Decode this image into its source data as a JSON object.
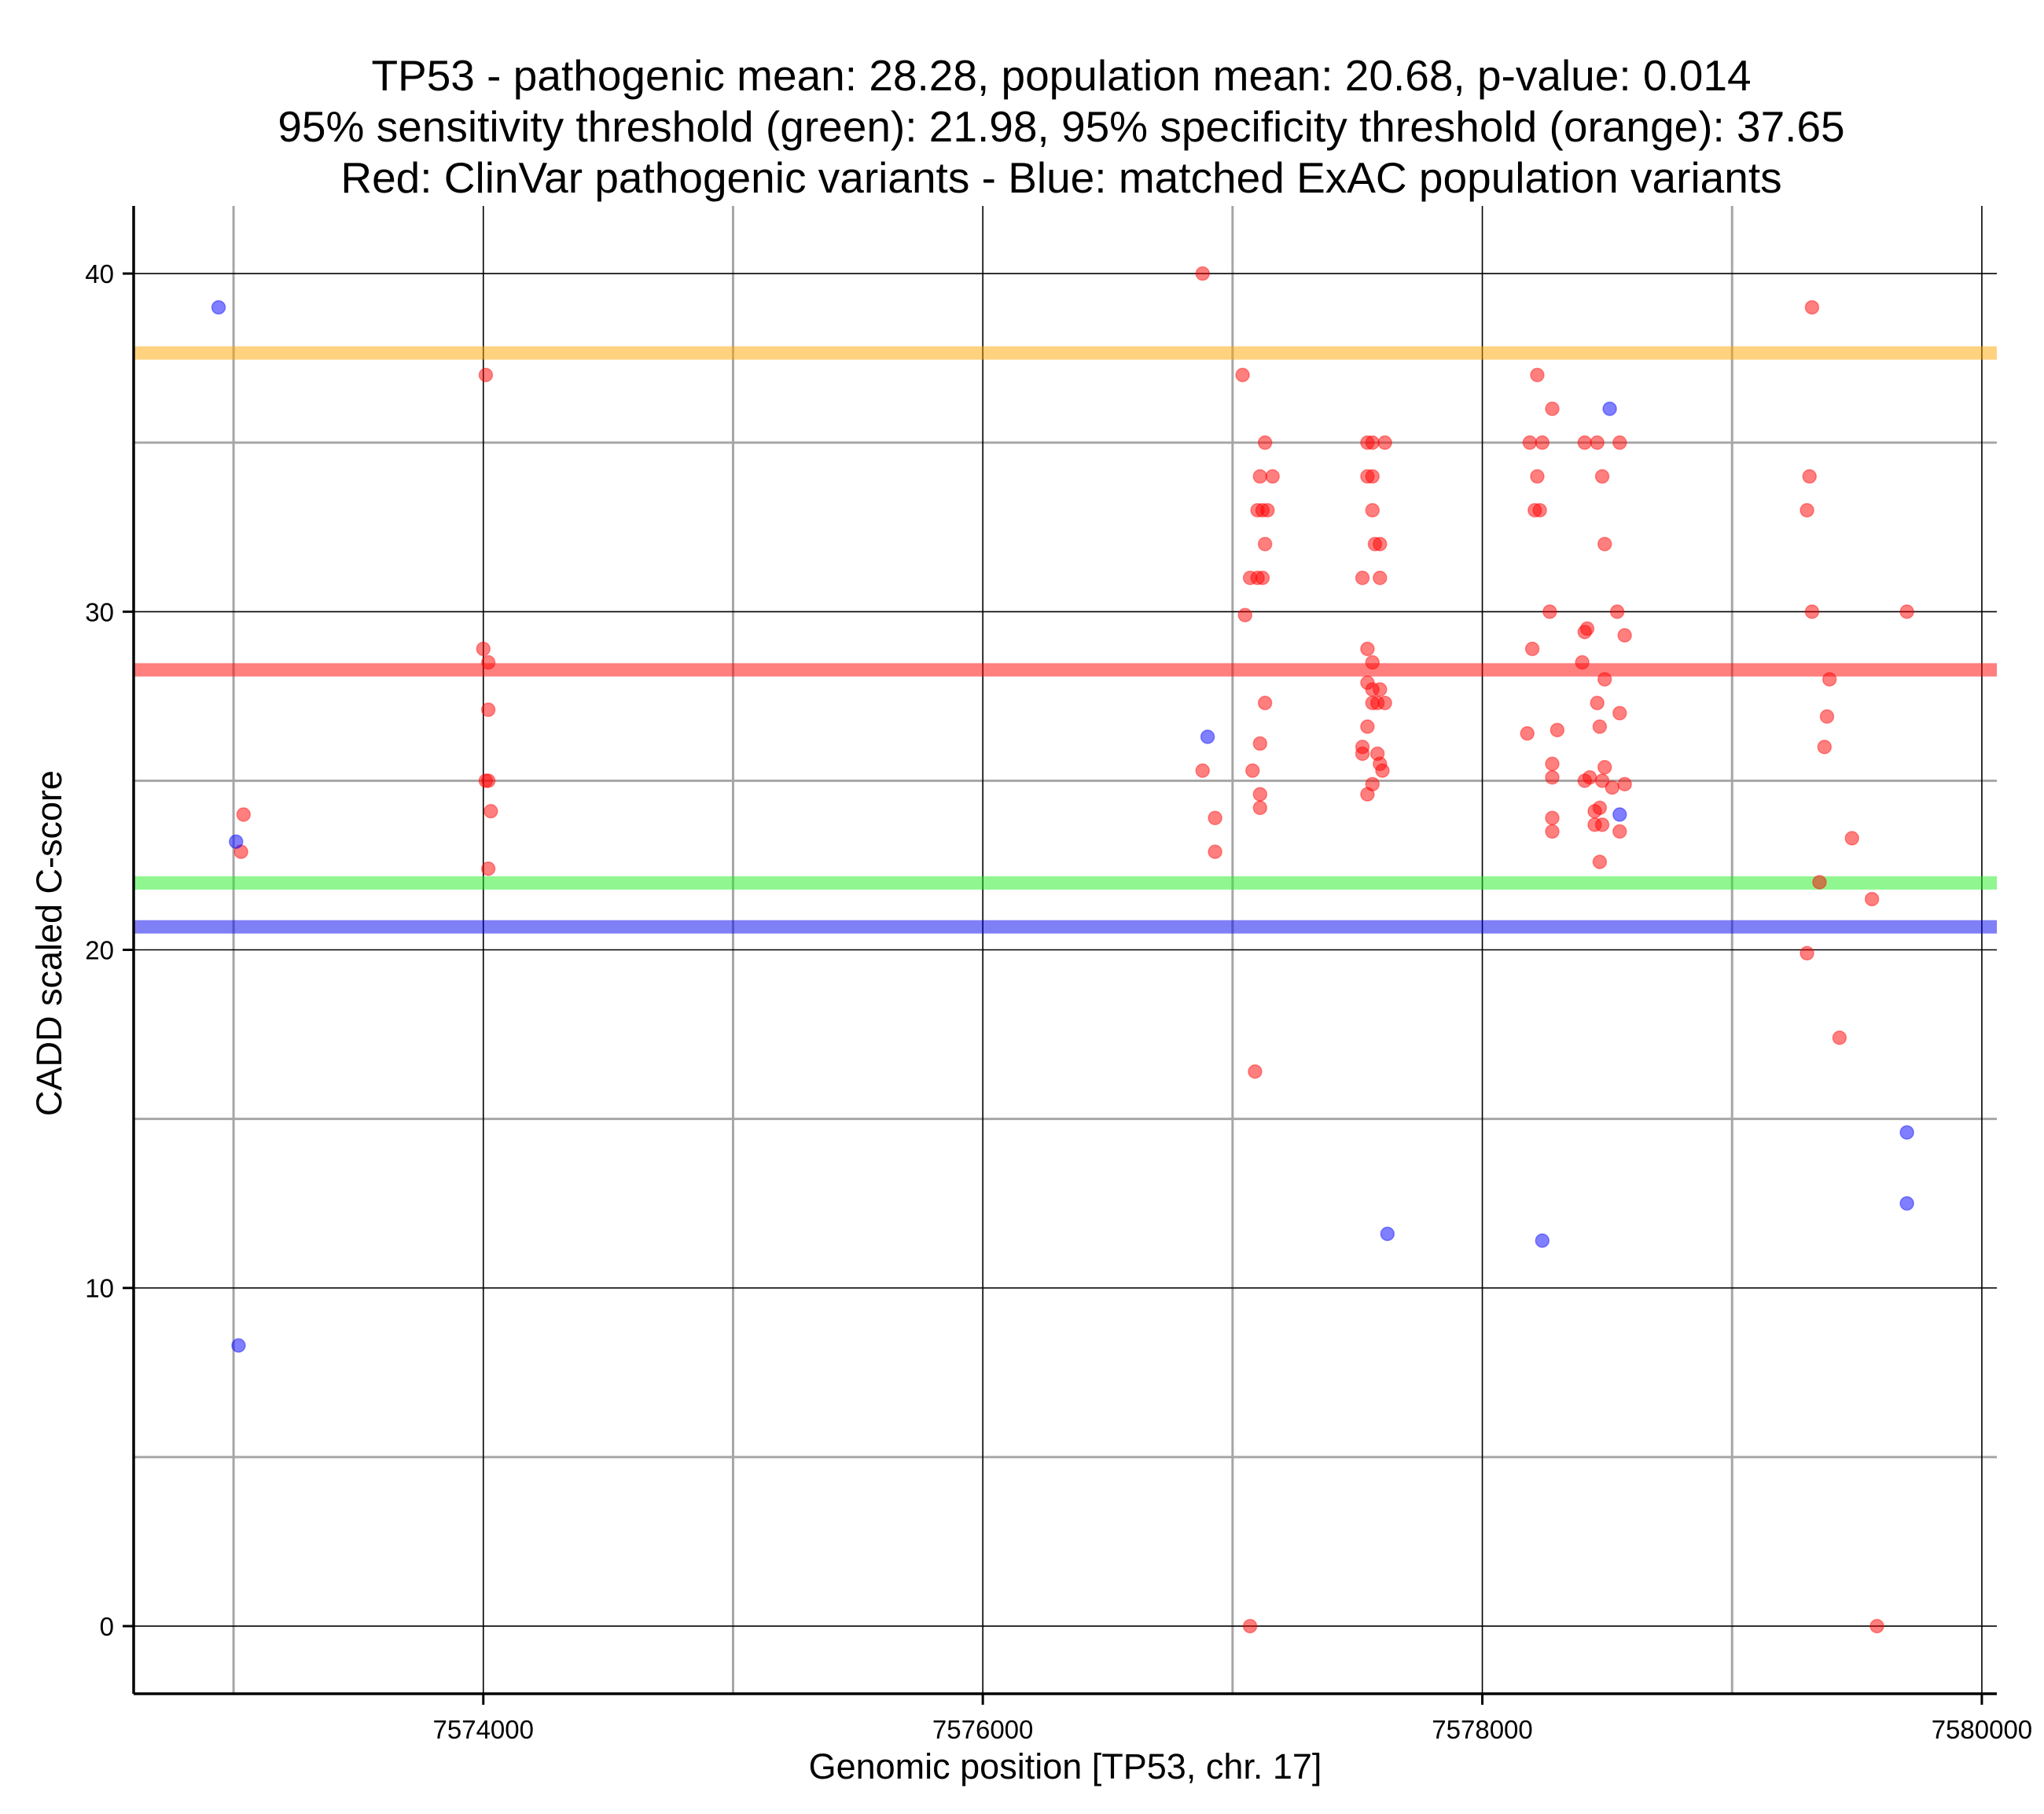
{
  "chart_data": {
    "type": "scatter",
    "title_lines": [
      "TP53 - pathogenic mean: 28.28, population mean: 20.68, p-value: 0.014",
      "95% sensitivity threshold (green): 21.98, 95% specificity threshold (orange): 37.65",
      "Red: ClinVar pathogenic variants - Blue: matched ExAC population variants"
    ],
    "xlabel": "Genomic position [TP53, chr. 17]",
    "ylabel": "CADD scaled C-score",
    "xlim": [
      7572600,
      7580060
    ],
    "ylim": [
      -2,
      42
    ],
    "x_major_ticks": [
      7574000,
      7576000,
      7578000,
      7580000
    ],
    "x_minor_grid": [
      7573000,
      7575000,
      7577000,
      7579000
    ],
    "y_major_ticks": [
      0,
      10,
      20,
      30,
      40
    ],
    "y_minor_grid": [
      5,
      15,
      25,
      35
    ],
    "x_tick_labels": [
      "7574000",
      "7576000",
      "7578000",
      "7580000"
    ],
    "y_tick_labels": [
      "0",
      "10",
      "20",
      "30",
      "40"
    ],
    "hlines": [
      {
        "name": "specificity threshold",
        "value": 37.65,
        "color": "#FFA500"
      },
      {
        "name": "pathogenic mean",
        "value": 28.28,
        "color": "#FF0000"
      },
      {
        "name": "sensitivity threshold",
        "value": 21.98,
        "color": "#22EE22"
      },
      {
        "name": "population mean",
        "value": 20.68,
        "color": "#0000EE"
      }
    ],
    "series": [
      {
        "name": "ClinVar pathogenic variants",
        "color": "#FF0000",
        "points": [
          [
            7573040,
            24.0
          ],
          [
            7573030,
            22.9
          ],
          [
            7574010,
            37.0
          ],
          [
            7574000,
            28.9
          ],
          [
            7574020,
            28.5
          ],
          [
            7574020,
            27.1
          ],
          [
            7574010,
            25.0
          ],
          [
            7574020,
            25.0
          ],
          [
            7574030,
            24.1
          ],
          [
            7574020,
            22.4
          ],
          [
            7576880,
            40.0
          ],
          [
            7577040,
            37.0
          ],
          [
            7577130,
            35.0
          ],
          [
            7577110,
            34.0
          ],
          [
            7577160,
            34.0
          ],
          [
            7577100,
            33.0
          ],
          [
            7577120,
            33.0
          ],
          [
            7577140,
            33.0
          ],
          [
            7577130,
            32.0
          ],
          [
            7577070,
            31.0
          ],
          [
            7577100,
            31.0
          ],
          [
            7577120,
            31.0
          ],
          [
            7577050,
            29.9
          ],
          [
            7577130,
            27.3
          ],
          [
            7577110,
            26.1
          ],
          [
            7577080,
            25.3
          ],
          [
            7576880,
            25.3
          ],
          [
            7577110,
            24.6
          ],
          [
            7577110,
            24.2
          ],
          [
            7576930,
            23.9
          ],
          [
            7576930,
            22.9
          ],
          [
            7577090,
            16.4
          ],
          [
            7577070,
            0.0
          ],
          [
            7577540,
            35.0
          ],
          [
            7577560,
            35.0
          ],
          [
            7577610,
            35.0
          ],
          [
            7577540,
            34.0
          ],
          [
            7577560,
            34.0
          ],
          [
            7577560,
            33.0
          ],
          [
            7577570,
            32.0
          ],
          [
            7577590,
            32.0
          ],
          [
            7577520,
            31.0
          ],
          [
            7577590,
            31.0
          ],
          [
            7577540,
            28.9
          ],
          [
            7577560,
            28.5
          ],
          [
            7577540,
            27.9
          ],
          [
            7577560,
            27.7
          ],
          [
            7577590,
            27.7
          ],
          [
            7577580,
            27.3
          ],
          [
            7577610,
            27.3
          ],
          [
            7577560,
            27.3
          ],
          [
            7577540,
            26.6
          ],
          [
            7577520,
            26.0
          ],
          [
            7577520,
            25.8
          ],
          [
            7577580,
            25.8
          ],
          [
            7577590,
            25.5
          ],
          [
            7577600,
            25.3
          ],
          [
            7577560,
            24.9
          ],
          [
            7577540,
            24.6
          ],
          [
            7578220,
            37.0
          ],
          [
            7578190,
            35.0
          ],
          [
            7578240,
            35.0
          ],
          [
            7578280,
            36.0
          ],
          [
            7578410,
            35.0
          ],
          [
            7578460,
            35.0
          ],
          [
            7578550,
            35.0
          ],
          [
            7578220,
            34.0
          ],
          [
            7578480,
            34.0
          ],
          [
            7578210,
            33.0
          ],
          [
            7578230,
            33.0
          ],
          [
            7578490,
            32.0
          ],
          [
            7578270,
            30.0
          ],
          [
            7578540,
            30.0
          ],
          [
            7578420,
            29.5
          ],
          [
            7578410,
            29.4
          ],
          [
            7578570,
            29.3
          ],
          [
            7578200,
            28.9
          ],
          [
            7578400,
            28.5
          ],
          [
            7578490,
            28.0
          ],
          [
            7578460,
            27.3
          ],
          [
            7578550,
            27.0
          ],
          [
            7578470,
            26.6
          ],
          [
            7578300,
            26.5
          ],
          [
            7578180,
            26.4
          ],
          [
            7578280,
            25.5
          ],
          [
            7578490,
            25.4
          ],
          [
            7578280,
            25.1
          ],
          [
            7578410,
            25.0
          ],
          [
            7578430,
            25.1
          ],
          [
            7578480,
            25.0
          ],
          [
            7578520,
            24.8
          ],
          [
            7578570,
            24.9
          ],
          [
            7578470,
            24.2
          ],
          [
            7578450,
            24.1
          ],
          [
            7578280,
            23.9
          ],
          [
            7578450,
            23.7
          ],
          [
            7578480,
            23.7
          ],
          [
            7578280,
            23.5
          ],
          [
            7578550,
            23.5
          ],
          [
            7578470,
            22.6
          ],
          [
            7579320,
            39.0
          ],
          [
            7579310,
            34.0
          ],
          [
            7579300,
            33.0
          ],
          [
            7579320,
            30.0
          ],
          [
            7579700,
            30.0
          ],
          [
            7579390,
            28.0
          ],
          [
            7579380,
            26.9
          ],
          [
            7579370,
            26.0
          ],
          [
            7579480,
            23.3
          ],
          [
            7579350,
            22.0
          ],
          [
            7579560,
            21.5
          ],
          [
            7579300,
            19.9
          ],
          [
            7579430,
            17.4
          ],
          [
            7579580,
            0.0
          ]
        ]
      },
      {
        "name": "matched ExAC population variants",
        "color": "#0000FF",
        "points": [
          [
            7572940,
            39.0
          ],
          [
            7573010,
            23.2
          ],
          [
            7573020,
            8.3
          ],
          [
            7576900,
            26.3
          ],
          [
            7577620,
            11.6
          ],
          [
            7578240,
            11.4
          ],
          [
            7578510,
            36.0
          ],
          [
            7578550,
            24.0
          ],
          [
            7579700,
            14.6
          ],
          [
            7579700,
            12.5
          ]
        ]
      }
    ]
  }
}
